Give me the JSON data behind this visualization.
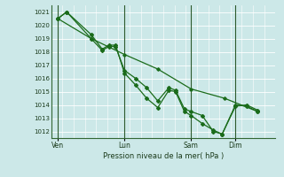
{
  "xlabel": "Pression niveau de la mer( hPa )",
  "background_color": "#cce8e8",
  "grid_color": "#ffffff",
  "line_color": "#1a6b1a",
  "marker_color": "#1a6b1a",
  "dark_line_color": "#2d5a2d",
  "ylim": [
    1011.5,
    1021.5
  ],
  "yticks": [
    1012,
    1013,
    1014,
    1015,
    1016,
    1017,
    1018,
    1019,
    1020,
    1021
  ],
  "xtick_labels": [
    "Ven",
    "Lun",
    "Sam",
    "Dim"
  ],
  "xtick_positions": [
    0,
    3,
    6,
    8
  ],
  "xlim": [
    -0.3,
    9.8
  ],
  "series1_x": [
    0.0,
    0.4,
    1.5,
    2.0,
    2.3,
    2.6,
    3.0,
    3.5,
    4.0,
    4.5,
    5.0,
    5.3,
    5.7,
    6.0,
    6.5,
    7.0,
    7.4,
    8.0,
    8.5,
    9.0
  ],
  "series1_y": [
    1020.5,
    1021.0,
    1019.0,
    1018.1,
    1018.4,
    1018.4,
    1016.6,
    1016.0,
    1015.3,
    1014.3,
    1015.3,
    1015.1,
    1013.7,
    1013.5,
    1013.2,
    1012.0,
    1011.8,
    1014.0,
    1013.9,
    1013.5
  ],
  "series2_x": [
    0.0,
    0.4,
    1.5,
    2.0,
    2.3,
    2.6,
    3.0,
    3.5,
    4.0,
    4.5,
    5.0,
    5.3,
    5.7,
    6.0,
    6.5,
    7.0,
    7.4,
    8.0,
    8.5,
    9.0
  ],
  "series2_y": [
    1020.5,
    1021.0,
    1019.3,
    1018.2,
    1018.5,
    1018.5,
    1016.4,
    1015.5,
    1014.5,
    1013.8,
    1015.1,
    1015.0,
    1013.5,
    1013.2,
    1012.6,
    1012.1,
    1011.8,
    1013.9,
    1014.0,
    1013.6
  ],
  "series3_x": [
    0.0,
    1.5,
    3.0,
    4.5,
    6.0,
    7.5,
    9.0
  ],
  "series3_y": [
    1020.5,
    1019.0,
    1017.8,
    1016.7,
    1015.2,
    1014.5,
    1013.5
  ],
  "vline_color": "#2d5a2d",
  "spine_color": "#336633"
}
